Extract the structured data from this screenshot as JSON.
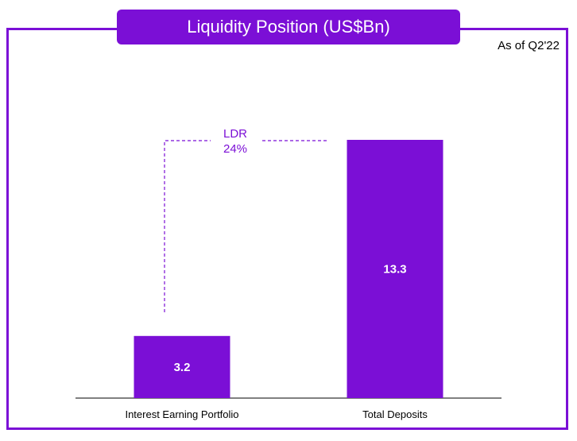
{
  "colors": {
    "accent": "#7b0fd6",
    "bar": "#7b0fd6",
    "label_on_bar": "#ffffff",
    "text": "#000000",
    "annotation": "#7b0fd6"
  },
  "chart_data": {
    "type": "bar",
    "title": "Liquidity Position (US$Bn)",
    "subtitle": "As of Q2'22",
    "categories": [
      "Interest Earning Portfolio",
      "Total Deposits"
    ],
    "values": [
      3.2,
      13.3
    ],
    "data_labels": [
      "3.2",
      "13.3"
    ],
    "ylim": [
      0,
      13.3
    ],
    "grid": false,
    "legend": "none",
    "xlabel": "",
    "ylabel": "",
    "annotation": {
      "label": "LDR",
      "value": "24%"
    }
  }
}
